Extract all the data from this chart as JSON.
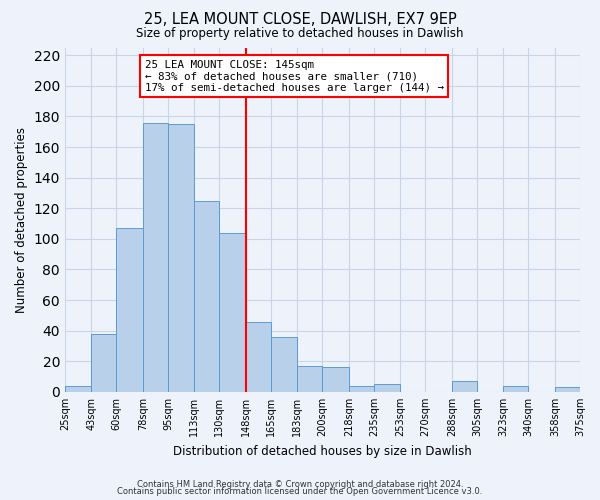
{
  "title": "25, LEA MOUNT CLOSE, DAWLISH, EX7 9EP",
  "subtitle": "Size of property relative to detached houses in Dawlish",
  "xlabel": "Distribution of detached houses by size in Dawlish",
  "ylabel": "Number of detached properties",
  "bin_labels": [
    "25sqm",
    "43sqm",
    "60sqm",
    "78sqm",
    "95sqm",
    "113sqm",
    "130sqm",
    "148sqm",
    "165sqm",
    "183sqm",
    "200sqm",
    "218sqm",
    "235sqm",
    "253sqm",
    "270sqm",
    "288sqm",
    "305sqm",
    "323sqm",
    "340sqm",
    "358sqm",
    "375sqm"
  ],
  "bar_heights": [
    4,
    38,
    107,
    176,
    175,
    125,
    104,
    46,
    36,
    17,
    16,
    4,
    5,
    0,
    0,
    7,
    0,
    4,
    0,
    3
  ],
  "bin_edges": [
    25,
    43,
    60,
    78,
    95,
    113,
    130,
    148,
    165,
    183,
    200,
    218,
    235,
    253,
    270,
    288,
    305,
    323,
    340,
    358,
    375
  ],
  "bar_color": "#b8d0ea",
  "bar_edge_color": "#5b9bd5",
  "vline_x": 148,
  "vline_color": "red",
  "annotation_title": "25 LEA MOUNT CLOSE: 145sqm",
  "annotation_line1": "← 83% of detached houses are smaller (710)",
  "annotation_line2": "17% of semi-detached houses are larger (144) →",
  "annotation_box_color": "white",
  "annotation_box_edge": "red",
  "ylim": [
    0,
    225
  ],
  "yticks": [
    0,
    20,
    40,
    60,
    80,
    100,
    120,
    140,
    160,
    180,
    200,
    220
  ],
  "footer1": "Contains HM Land Registry data © Crown copyright and database right 2024.",
  "footer2": "Contains public sector information licensed under the Open Government Licence v3.0.",
  "bg_color": "#eef2fb",
  "grid_color": "#c8d4e8"
}
